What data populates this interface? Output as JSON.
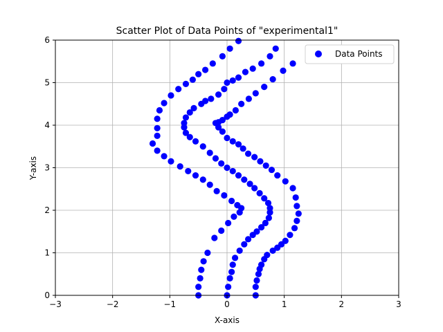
{
  "chart_data": {
    "type": "scatter",
    "title": "Scatter Plot of Data Points of \"experimental1\"",
    "xlabel": "X-axis",
    "ylabel": "Y-axis",
    "xlim": [
      -3,
      3
    ],
    "ylim": [
      0,
      6
    ],
    "x_ticks": [
      -3,
      -2,
      -1,
      0,
      1,
      2,
      3
    ],
    "y_ticks": [
      0,
      1,
      2,
      3,
      4,
      5,
      6
    ],
    "x_tick_labels": [
      "−3",
      "−2",
      "−1",
      "0",
      "1",
      "2",
      "3"
    ],
    "y_tick_labels": [
      "0",
      "1",
      "2",
      "3",
      "4",
      "5",
      "6"
    ],
    "grid": true,
    "legend": {
      "position": "top-right",
      "entries": [
        "Data Points"
      ]
    },
    "marker_color": "#0000ff",
    "series": [
      {
        "name": "Data Points",
        "points": [
          [
            -0.5,
            0.0
          ],
          [
            -0.5,
            0.2
          ],
          [
            -0.47,
            0.4
          ],
          [
            -0.45,
            0.6
          ],
          [
            -0.41,
            0.8
          ],
          [
            -0.34,
            1.0
          ],
          [
            -0.22,
            1.35
          ],
          [
            -0.1,
            1.52
          ],
          [
            0.02,
            1.7
          ],
          [
            0.12,
            1.85
          ],
          [
            0.22,
            1.95
          ],
          [
            0.25,
            2.05
          ],
          [
            0.18,
            2.12
          ],
          [
            0.08,
            2.22
          ],
          [
            -0.05,
            2.35
          ],
          [
            -0.18,
            2.45
          ],
          [
            -0.3,
            2.6
          ],
          [
            -0.42,
            2.72
          ],
          [
            -0.55,
            2.82
          ],
          [
            -0.68,
            2.92
          ],
          [
            -0.82,
            3.03
          ],
          [
            -0.98,
            3.15
          ],
          [
            -1.1,
            3.27
          ],
          [
            -1.22,
            3.4
          ],
          [
            -1.3,
            3.57
          ],
          [
            -1.22,
            3.75
          ],
          [
            -1.22,
            3.93
          ],
          [
            -1.22,
            4.15
          ],
          [
            -1.18,
            4.35
          ],
          [
            -1.1,
            4.52
          ],
          [
            -0.98,
            4.7
          ],
          [
            -0.85,
            4.85
          ],
          [
            -0.72,
            4.97
          ],
          [
            -0.6,
            5.07
          ],
          [
            -0.5,
            5.2
          ],
          [
            -0.38,
            5.3
          ],
          [
            -0.25,
            5.45
          ],
          [
            -0.08,
            5.62
          ],
          [
            0.05,
            5.8
          ],
          [
            0.2,
            5.98
          ],
          [
            0.0,
            0.0
          ],
          [
            0.02,
            0.2
          ],
          [
            0.05,
            0.4
          ],
          [
            0.08,
            0.55
          ],
          [
            0.1,
            0.72
          ],
          [
            0.14,
            0.88
          ],
          [
            0.22,
            1.05
          ],
          [
            0.3,
            1.2
          ],
          [
            0.37,
            1.32
          ],
          [
            0.45,
            1.42
          ],
          [
            0.52,
            1.5
          ],
          [
            0.6,
            1.6
          ],
          [
            0.67,
            1.7
          ],
          [
            0.73,
            1.82
          ],
          [
            0.75,
            1.95
          ],
          [
            0.75,
            2.05
          ],
          [
            0.72,
            2.17
          ],
          [
            0.65,
            2.28
          ],
          [
            0.57,
            2.4
          ],
          [
            0.48,
            2.52
          ],
          [
            0.4,
            2.62
          ],
          [
            0.3,
            2.72
          ],
          [
            0.2,
            2.82
          ],
          [
            0.1,
            2.92
          ],
          [
            0.0,
            3.0
          ],
          [
            -0.1,
            3.1
          ],
          [
            -0.2,
            3.22
          ],
          [
            -0.3,
            3.35
          ],
          [
            -0.42,
            3.5
          ],
          [
            -0.55,
            3.62
          ],
          [
            -0.65,
            3.72
          ],
          [
            -0.72,
            3.82
          ],
          [
            -0.75,
            3.95
          ],
          [
            -0.75,
            4.05
          ],
          [
            -0.72,
            4.18
          ],
          [
            -0.65,
            4.3
          ],
          [
            -0.58,
            4.4
          ],
          [
            -0.45,
            4.5
          ],
          [
            -0.38,
            4.57
          ],
          [
            -0.28,
            4.62
          ],
          [
            -0.15,
            4.72
          ],
          [
            -0.05,
            4.85
          ],
          [
            0.0,
            5.0
          ],
          [
            0.1,
            5.05
          ],
          [
            0.2,
            5.12
          ],
          [
            0.32,
            5.25
          ],
          [
            0.45,
            5.33
          ],
          [
            0.6,
            5.45
          ],
          [
            0.75,
            5.62
          ],
          [
            0.85,
            5.8
          ],
          [
            0.5,
            0.0
          ],
          [
            0.5,
            0.2
          ],
          [
            0.52,
            0.35
          ],
          [
            0.55,
            0.5
          ],
          [
            0.57,
            0.62
          ],
          [
            0.6,
            0.72
          ],
          [
            0.65,
            0.85
          ],
          [
            0.7,
            0.95
          ],
          [
            0.8,
            1.05
          ],
          [
            0.88,
            1.12
          ],
          [
            0.95,
            1.2
          ],
          [
            1.02,
            1.28
          ],
          [
            1.1,
            1.42
          ],
          [
            1.18,
            1.58
          ],
          [
            1.22,
            1.75
          ],
          [
            1.25,
            1.92
          ],
          [
            1.22,
            2.1
          ],
          [
            1.2,
            2.3
          ],
          [
            1.15,
            2.52
          ],
          [
            1.02,
            2.68
          ],
          [
            0.88,
            2.82
          ],
          [
            0.78,
            2.95
          ],
          [
            0.68,
            3.05
          ],
          [
            0.58,
            3.15
          ],
          [
            0.48,
            3.25
          ],
          [
            0.37,
            3.33
          ],
          [
            0.28,
            3.45
          ],
          [
            0.2,
            3.55
          ],
          [
            0.1,
            3.62
          ],
          [
            0.0,
            3.7
          ],
          [
            -0.08,
            3.85
          ],
          [
            -0.15,
            3.95
          ],
          [
            -0.2,
            4.05
          ],
          [
            -0.15,
            4.07
          ],
          [
            -0.08,
            4.12
          ],
          [
            0.0,
            4.2
          ],
          [
            0.05,
            4.25
          ],
          [
            0.15,
            4.35
          ],
          [
            0.25,
            4.5
          ],
          [
            0.38,
            4.62
          ],
          [
            0.5,
            4.75
          ],
          [
            0.65,
            4.9
          ],
          [
            0.8,
            5.08
          ],
          [
            0.98,
            5.28
          ],
          [
            1.15,
            5.45
          ]
        ]
      }
    ]
  }
}
